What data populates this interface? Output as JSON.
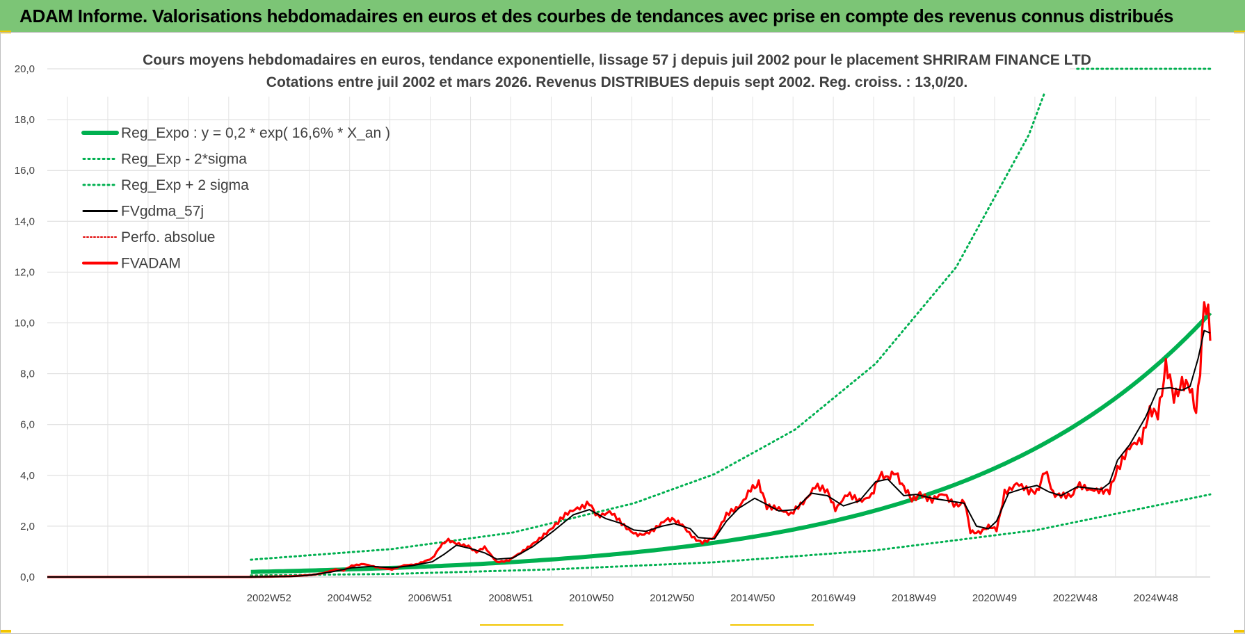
{
  "header": {
    "title": "ADAM Informe. Valorisations hebdomadaires en euros et des courbes de tendances avec prise en compte des revenus connus distribués"
  },
  "colors": {
    "banner": "#7cc576",
    "reg_expo": "#00b050",
    "sigma": "#00b050",
    "fvgdma": "#000000",
    "perfo": "#e00000",
    "fvadam": "#ff0000"
  },
  "chart_data": {
    "type": "line",
    "title_line1": "Cours moyens hebdomadaires en euros, tendance exponentielle, lissage 57 j depuis juil 2002 pour le placement SHRIRAM FINANCE LTD",
    "title_line2": "Cotations entre juil 2002 et mars 2026. Revenus DISTRIBUES depuis sept 2002. Reg. croiss. : 13,0/20.",
    "ylim": [
      0,
      20
    ],
    "yticks": [
      "0,0",
      "2,0",
      "4,0",
      "6,0",
      "8,0",
      "10,0",
      "12,0",
      "14,0",
      "16,0",
      "18,0",
      "20,0"
    ],
    "xlim": [
      1997.45,
      2026.3
    ],
    "xticks": [
      {
        "label": "2002W52",
        "x": 2002.95
      },
      {
        "label": "2004W52",
        "x": 2004.95
      },
      {
        "label": "2006W51",
        "x": 2006.95
      },
      {
        "label": "2008W51",
        "x": 2008.95
      },
      {
        "label": "2010W50",
        "x": 2010.95
      },
      {
        "label": "2012W50",
        "x": 2012.95
      },
      {
        "label": "2014W50",
        "x": 2014.95
      },
      {
        "label": "2016W49",
        "x": 2016.95
      },
      {
        "label": "2018W49",
        "x": 2018.95
      },
      {
        "label": "2020W49",
        "x": 2020.95
      },
      {
        "label": "2022W48",
        "x": 2022.95
      },
      {
        "label": "2024W48",
        "x": 2024.95
      }
    ],
    "legend": [
      {
        "label": "Reg_Expo : y = 0,2 * exp( 16,6% *  X_an )",
        "style": "thick"
      },
      {
        "label": "Reg_Exp - 2*sigma",
        "style": "dotted"
      },
      {
        "label": "Reg_Exp + 2 sigma",
        "style": "dotted"
      },
      {
        "label": "FVgdma_57j",
        "style": "thin"
      },
      {
        "label": "Perfo. absolue",
        "style": "dotted-red"
      },
      {
        "label": "FVADAM",
        "style": "medium"
      }
    ],
    "regression": {
      "start_x": 2002.5,
      "start_value": 0.2,
      "rate": 0.166
    },
    "lower_band": [
      [
        2002.5,
        0.06
      ],
      [
        2006,
        0.12
      ],
      [
        2010,
        0.3
      ],
      [
        2014,
        0.58
      ],
      [
        2018,
        1.05
      ],
      [
        2022,
        1.85
      ],
      [
        2026.3,
        3.25
      ]
    ],
    "upper_band": [
      [
        2002.5,
        0.68
      ],
      [
        2006,
        1.1
      ],
      [
        2009,
        1.75
      ],
      [
        2012,
        2.9
      ],
      [
        2014,
        4.05
      ],
      [
        2016,
        5.8
      ],
      [
        2018,
        8.4
      ],
      [
        2020,
        12.2
      ],
      [
        2021.8,
        17.4
      ],
      [
        2022.2,
        19.1
      ]
    ],
    "upper_band_flat": {
      "value": 20.0,
      "x_start": 2023.0,
      "x_end": 2026.3
    },
    "fvgdma_57j": [
      [
        1997.45,
        0
      ],
      [
        2002.5,
        0
      ],
      [
        2003.5,
        0.02
      ],
      [
        2004,
        0.08
      ],
      [
        2004.5,
        0.2
      ],
      [
        2005,
        0.36
      ],
      [
        2005.5,
        0.42
      ],
      [
        2006,
        0.36
      ],
      [
        2006.5,
        0.45
      ],
      [
        2007,
        0.6
      ],
      [
        2007.3,
        0.9
      ],
      [
        2007.6,
        1.25
      ],
      [
        2008,
        1.1
      ],
      [
        2008.3,
        0.95
      ],
      [
        2008.6,
        0.7
      ],
      [
        2009,
        0.75
      ],
      [
        2009.5,
        1.2
      ],
      [
        2010,
        1.8
      ],
      [
        2010.5,
        2.45
      ],
      [
        2010.9,
        2.65
      ],
      [
        2011.3,
        2.3
      ],
      [
        2011.7,
        2.1
      ],
      [
        2012,
        1.85
      ],
      [
        2012.3,
        1.8
      ],
      [
        2012.7,
        2.0
      ],
      [
        2013,
        2.1
      ],
      [
        2013.4,
        1.9
      ],
      [
        2013.6,
        1.55
      ],
      [
        2014,
        1.5
      ],
      [
        2014.3,
        2.2
      ],
      [
        2014.6,
        2.7
      ],
      [
        2015,
        3.1
      ],
      [
        2015.3,
        2.85
      ],
      [
        2015.6,
        2.6
      ],
      [
        2016,
        2.65
      ],
      [
        2016.4,
        3.3
      ],
      [
        2016.8,
        3.2
      ],
      [
        2017.2,
        2.8
      ],
      [
        2017.6,
        3.0
      ],
      [
        2018,
        3.75
      ],
      [
        2018.3,
        3.85
      ],
      [
        2018.7,
        3.2
      ],
      [
        2019,
        3.25
      ],
      [
        2019.4,
        3.1
      ],
      [
        2019.8,
        3.0
      ],
      [
        2020.2,
        2.9
      ],
      [
        2020.5,
        2.0
      ],
      [
        2020.8,
        1.9
      ],
      [
        2021,
        2.2
      ],
      [
        2021.3,
        3.3
      ],
      [
        2021.7,
        3.5
      ],
      [
        2022,
        3.6
      ],
      [
        2022.3,
        3.35
      ],
      [
        2022.6,
        3.2
      ],
      [
        2023,
        3.55
      ],
      [
        2023.3,
        3.5
      ],
      [
        2023.6,
        3.45
      ],
      [
        2023.8,
        3.7
      ],
      [
        2024,
        4.6
      ],
      [
        2024.3,
        5.2
      ],
      [
        2024.7,
        6.3
      ],
      [
        2025,
        7.4
      ],
      [
        2025.3,
        7.45
      ],
      [
        2025.6,
        7.35
      ],
      [
        2025.8,
        7.5
      ],
      [
        2026,
        8.6
      ],
      [
        2026.15,
        9.7
      ],
      [
        2026.3,
        9.6
      ]
    ],
    "fvadam": [
      [
        1997.45,
        0
      ],
      [
        2002.5,
        0
      ],
      [
        2003.5,
        0.03
      ],
      [
        2004,
        0.08
      ],
      [
        2004.3,
        0.15
      ],
      [
        2004.6,
        0.3
      ],
      [
        2004.8,
        0.25
      ],
      [
        2005,
        0.45
      ],
      [
        2005.3,
        0.5
      ],
      [
        2005.6,
        0.4
      ],
      [
        2006,
        0.3
      ],
      [
        2006.3,
        0.45
      ],
      [
        2006.6,
        0.5
      ],
      [
        2007,
        0.75
      ],
      [
        2007.2,
        1.2
      ],
      [
        2007.4,
        1.45
      ],
      [
        2007.6,
        1.35
      ],
      [
        2007.9,
        1.2
      ],
      [
        2008.1,
        1.0
      ],
      [
        2008.3,
        1.15
      ],
      [
        2008.6,
        0.6
      ],
      [
        2008.9,
        0.65
      ],
      [
        2009.2,
        0.95
      ],
      [
        2009.6,
        1.45
      ],
      [
        2010,
        2.0
      ],
      [
        2010.3,
        2.4
      ],
      [
        2010.6,
        2.75
      ],
      [
        2010.9,
        2.9
      ],
      [
        2011.1,
        2.45
      ],
      [
        2011.4,
        2.55
      ],
      [
        2011.7,
        2.1
      ],
      [
        2012,
        1.75
      ],
      [
        2012.2,
        1.65
      ],
      [
        2012.5,
        1.9
      ],
      [
        2012.8,
        2.2
      ],
      [
        2013,
        2.3
      ],
      [
        2013.2,
        2.05
      ],
      [
        2013.5,
        1.55
      ],
      [
        2013.7,
        1.35
      ],
      [
        2014,
        1.6
      ],
      [
        2014.3,
        2.4
      ],
      [
        2014.6,
        2.8
      ],
      [
        2014.9,
        3.45
      ],
      [
        2015.1,
        3.75
      ],
      [
        2015.3,
        2.7
      ],
      [
        2015.6,
        2.75
      ],
      [
        2015.9,
        2.45
      ],
      [
        2016.2,
        2.9
      ],
      [
        2016.5,
        3.65
      ],
      [
        2016.8,
        3.3
      ],
      [
        2017,
        2.7
      ],
      [
        2017.3,
        3.2
      ],
      [
        2017.6,
        3.05
      ],
      [
        2017.9,
        3.2
      ],
      [
        2018.1,
        4.1
      ],
      [
        2018.3,
        3.8
      ],
      [
        2018.5,
        4.2
      ],
      [
        2018.7,
        3.5
      ],
      [
        2018.9,
        3.0
      ],
      [
        2019.1,
        3.35
      ],
      [
        2019.4,
        3.0
      ],
      [
        2019.7,
        3.25
      ],
      [
        2020,
        2.85
      ],
      [
        2020.2,
        3.0
      ],
      [
        2020.35,
        1.75
      ],
      [
        2020.6,
        1.8
      ],
      [
        2020.8,
        1.95
      ],
      [
        2021,
        1.9
      ],
      [
        2021.2,
        3.3
      ],
      [
        2021.5,
        3.75
      ],
      [
        2021.8,
        3.3
      ],
      [
        2022,
        3.4
      ],
      [
        2022.2,
        4.2
      ],
      [
        2022.4,
        3.25
      ],
      [
        2022.6,
        3.3
      ],
      [
        2022.9,
        3.2
      ],
      [
        2023,
        3.7
      ],
      [
        2023.3,
        3.35
      ],
      [
        2023.6,
        3.45
      ],
      [
        2023.8,
        3.3
      ],
      [
        2024,
        4.3
      ],
      [
        2024.3,
        5.0
      ],
      [
        2024.6,
        5.5
      ],
      [
        2024.8,
        6.4
      ],
      [
        2025,
        6.5
      ],
      [
        2025.2,
        8.3
      ],
      [
        2025.4,
        7.0
      ],
      [
        2025.6,
        7.8
      ],
      [
        2025.8,
        7.3
      ],
      [
        2025.95,
        6.5
      ],
      [
        2026.05,
        8.4
      ],
      [
        2026.15,
        10.9
      ],
      [
        2026.25,
        10.2
      ],
      [
        2026.3,
        9.3
      ]
    ]
  }
}
